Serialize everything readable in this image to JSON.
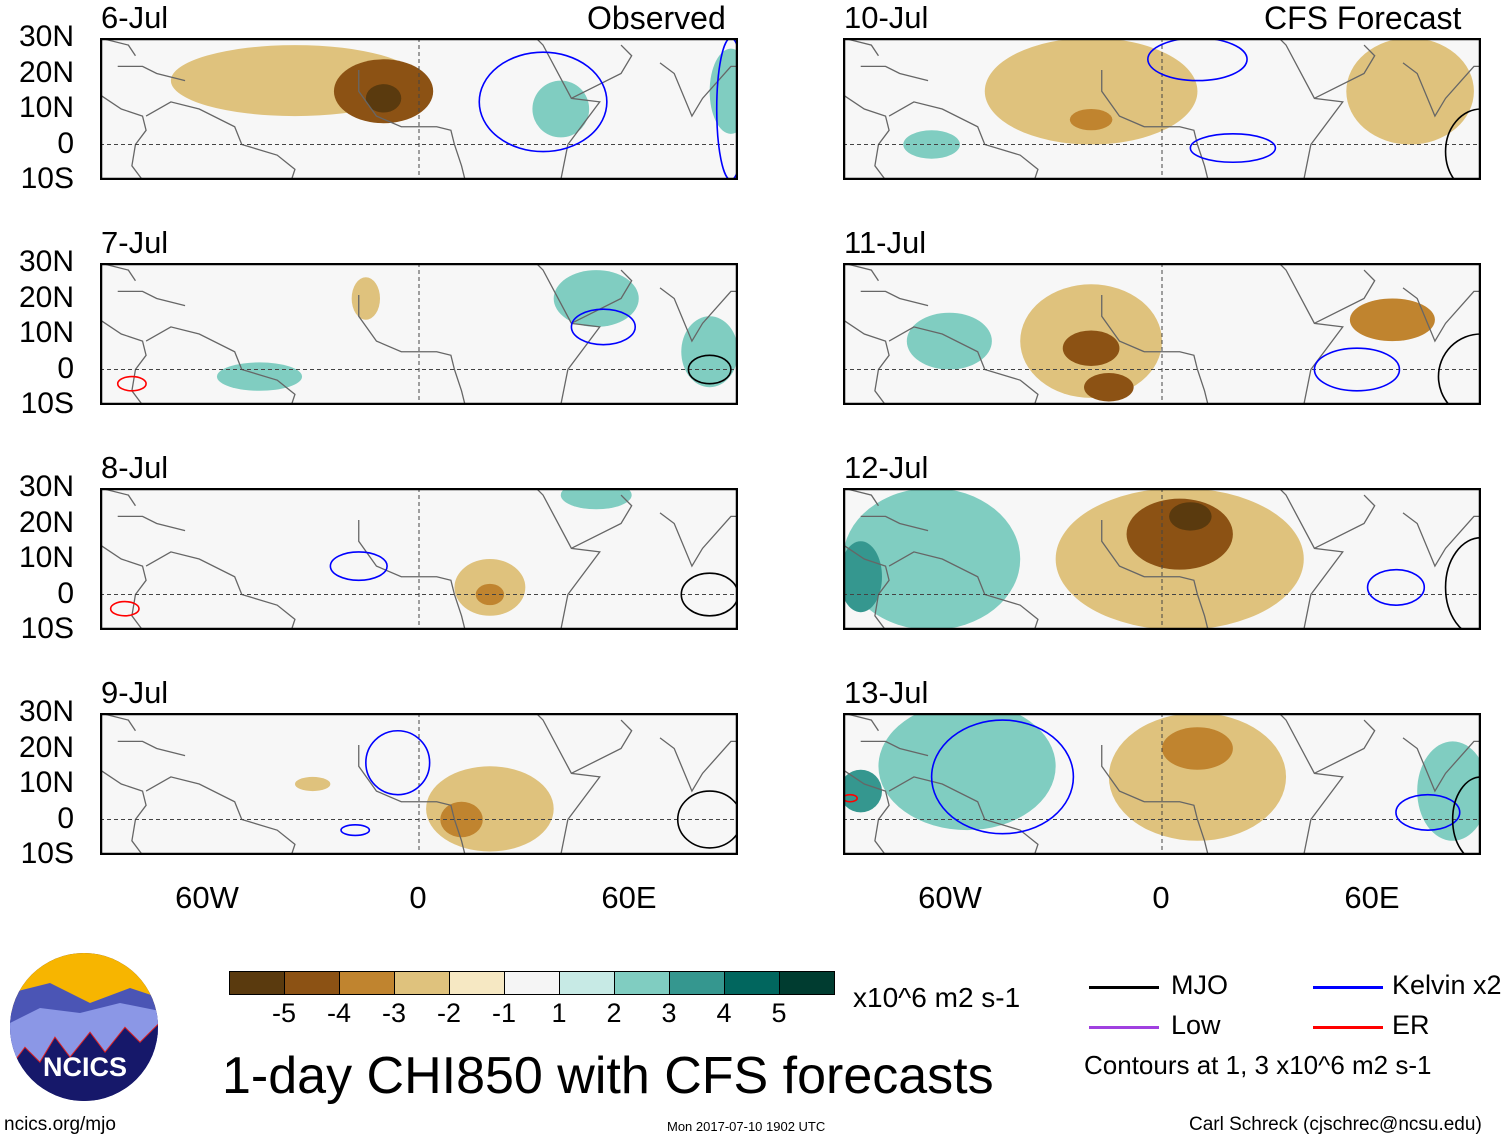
{
  "header": {
    "left_label": "Observed",
    "right_label": "CFS Forecast"
  },
  "lat_labels": [
    "30N",
    "20N",
    "10N",
    "0",
    "10S"
  ],
  "lon_labels": [
    "60W",
    "0",
    "60E"
  ],
  "title": "1-day CHI850 with CFS forecasts",
  "units": "x10^6 m2 s-1",
  "colorbar": {
    "colors": [
      "#5a3a0e",
      "#8c5214",
      "#c0842f",
      "#dfc27d",
      "#f6e8c3",
      "#f5f5f5",
      "#c7eae5",
      "#80cdc1",
      "#35978f",
      "#01665e",
      "#003c30"
    ],
    "labels": [
      "-5",
      "-4",
      "-3",
      "-2",
      "-1",
      "1",
      "2",
      "3",
      "4",
      "5"
    ]
  },
  "legend": {
    "items": [
      {
        "label": "MJO",
        "color": "#000000"
      },
      {
        "label": "Kelvin x2",
        "color": "#0000ff"
      },
      {
        "label": "Low",
        "color": "#a040e0"
      },
      {
        "label": "ER",
        "color": "#ff0000"
      }
    ],
    "note": "Contours at 1, 3 x10^6 m2 s-1"
  },
  "logo": {
    "text": "NCICS"
  },
  "footer": {
    "url": "ncics.org/mjo",
    "timestamp": "Mon 2017-07-10 1902 UTC",
    "author": "Carl Schreck (cjschrec@ncsu.edu)"
  },
  "chart_data": {
    "type": "heatmap",
    "lon_range": [
      -90,
      90
    ],
    "lat_range": [
      -10,
      30
    ],
    "panels": [
      {
        "date": "6-Jul",
        "anoms": [
          {
            "lon": -35,
            "lat": 18,
            "rl": 35,
            "rt": 10,
            "v": -1.5
          },
          {
            "lon": -10,
            "lat": 15,
            "rl": 14,
            "rt": 9,
            "v": -3
          },
          {
            "lon": -10,
            "lat": 13,
            "rl": 5,
            "rt": 4,
            "v": -4
          },
          {
            "lon": 40,
            "lat": 10,
            "rl": 8,
            "rt": 8,
            "v": 1.5
          },
          {
            "lon": 88,
            "lat": 15,
            "rl": 6,
            "rt": 12,
            "v": 1.5
          }
        ],
        "contours": [
          {
            "t": "Kelvin",
            "lon": 35,
            "lat": 12,
            "rl": 18,
            "rt": 14
          },
          {
            "t": "Kelvin",
            "lon": 88,
            "lat": 10,
            "rl": 4,
            "rt": 20
          }
        ]
      },
      {
        "date": "7-Jul",
        "anoms": [
          {
            "lon": -15,
            "lat": 20,
            "rl": 4,
            "rt": 6,
            "v": -1.5
          },
          {
            "lon": 50,
            "lat": 20,
            "rl": 12,
            "rt": 8,
            "v": 1.5
          },
          {
            "lon": -45,
            "lat": -2,
            "rl": 12,
            "rt": 4,
            "v": 1.5
          },
          {
            "lon": 82,
            "lat": 5,
            "rl": 8,
            "rt": 10,
            "v": 1.5
          }
        ],
        "contours": [
          {
            "t": "Kelvin",
            "lon": 52,
            "lat": 12,
            "rl": 9,
            "rt": 5
          },
          {
            "t": "MJO",
            "lon": 82,
            "lat": 0,
            "rl": 6,
            "rt": 4
          },
          {
            "t": "ER",
            "lon": -81,
            "lat": -4,
            "rl": 4,
            "rt": 2
          }
        ]
      },
      {
        "date": "8-Jul",
        "anoms": [
          {
            "lon": 50,
            "lat": 28,
            "rl": 10,
            "rt": 4,
            "v": 1.5
          },
          {
            "lon": 20,
            "lat": 2,
            "rl": 10,
            "rt": 8,
            "v": -1.5
          },
          {
            "lon": 20,
            "lat": 0,
            "rl": 4,
            "rt": 3,
            "v": -2.5
          }
        ],
        "contours": [
          {
            "t": "Kelvin",
            "lon": -17,
            "lat": 8,
            "rl": 8,
            "rt": 4
          },
          {
            "t": "MJO",
            "lon": 82,
            "lat": 0,
            "rl": 8,
            "rt": 6
          },
          {
            "t": "ER",
            "lon": -83,
            "lat": -4,
            "rl": 4,
            "rt": 2
          }
        ]
      },
      {
        "date": "9-Jul",
        "anoms": [
          {
            "lon": -30,
            "lat": 10,
            "rl": 5,
            "rt": 2,
            "v": -1.5
          },
          {
            "lon": 20,
            "lat": 3,
            "rl": 18,
            "rt": 12,
            "v": -1.5
          },
          {
            "lon": 12,
            "lat": 0,
            "rl": 6,
            "rt": 5,
            "v": -2.5
          }
        ],
        "contours": [
          {
            "t": "Kelvin",
            "lon": -6,
            "lat": 16,
            "rl": 9,
            "rt": 9
          },
          {
            "t": "Kelvin",
            "lon": -18,
            "lat": -3,
            "rl": 4,
            "rt": 1.5
          },
          {
            "t": "MJO",
            "lon": 82,
            "lat": 0,
            "rl": 9,
            "rt": 8
          }
        ]
      },
      {
        "date": "10-Jul",
        "anoms": [
          {
            "lon": -20,
            "lat": 15,
            "rl": 30,
            "rt": 15,
            "v": -1.5
          },
          {
            "lon": -20,
            "lat": 7,
            "rl": 6,
            "rt": 3,
            "v": -2.5
          },
          {
            "lon": 70,
            "lat": 15,
            "rl": 18,
            "rt": 15,
            "v": -1.5
          },
          {
            "lon": -65,
            "lat": 0,
            "rl": 8,
            "rt": 4,
            "v": 1.5
          }
        ],
        "contours": [
          {
            "t": "Kelvin",
            "lon": 10,
            "lat": 24,
            "rl": 14,
            "rt": 6
          },
          {
            "t": "Kelvin",
            "lon": 20,
            "lat": -1,
            "rl": 12,
            "rt": 4
          },
          {
            "t": "MJO",
            "lon": 90,
            "lat": -2,
            "rl": 10,
            "rt": 12
          }
        ]
      },
      {
        "date": "11-Jul",
        "anoms": [
          {
            "lon": -20,
            "lat": 8,
            "rl": 20,
            "rt": 16,
            "v": -1.5
          },
          {
            "lon": -20,
            "lat": 6,
            "rl": 8,
            "rt": 5,
            "v": -3
          },
          {
            "lon": -15,
            "lat": -5,
            "rl": 7,
            "rt": 4,
            "v": -3
          },
          {
            "lon": 65,
            "lat": 14,
            "rl": 12,
            "rt": 6,
            "v": -2
          },
          {
            "lon": -60,
            "lat": 8,
            "rl": 12,
            "rt": 8,
            "v": 1.5
          }
        ],
        "contours": [
          {
            "t": "Kelvin",
            "lon": 55,
            "lat": 0,
            "rl": 12,
            "rt": 6
          },
          {
            "t": "MJO",
            "lon": 90,
            "lat": -2,
            "rl": 12,
            "rt": 12
          }
        ]
      },
      {
        "date": "12-Jul",
        "anoms": [
          {
            "lon": 5,
            "lat": 10,
            "rl": 35,
            "rt": 20,
            "v": -1.5
          },
          {
            "lon": 5,
            "lat": 17,
            "rl": 15,
            "rt": 10,
            "v": -3
          },
          {
            "lon": 8,
            "lat": 22,
            "rl": 6,
            "rt": 4,
            "v": -4.5
          },
          {
            "lon": -65,
            "lat": 10,
            "rl": 25,
            "rt": 20,
            "v": 1.5
          },
          {
            "lon": -85,
            "lat": 5,
            "rl": 6,
            "rt": 10,
            "v": 2.5
          }
        ],
        "contours": [
          {
            "t": "Kelvin",
            "lon": 66,
            "lat": 2,
            "rl": 8,
            "rt": 5
          },
          {
            "t": "MJO",
            "lon": 90,
            "lat": 2,
            "rl": 10,
            "rt": 14
          }
        ]
      },
      {
        "date": "13-Jul",
        "anoms": [
          {
            "lon": -55,
            "lat": 15,
            "rl": 25,
            "rt": 18,
            "v": 1.5
          },
          {
            "lon": -85,
            "lat": 8,
            "rl": 6,
            "rt": 6,
            "v": 2.5
          },
          {
            "lon": 10,
            "lat": 12,
            "rl": 25,
            "rt": 18,
            "v": -1.5
          },
          {
            "lon": 10,
            "lat": 20,
            "rl": 10,
            "rt": 6,
            "v": -2.5
          },
          {
            "lon": 82,
            "lat": 8,
            "rl": 10,
            "rt": 14,
            "v": 1.5
          }
        ],
        "contours": [
          {
            "t": "Kelvin",
            "lon": -45,
            "lat": 12,
            "rl": 20,
            "rt": 16
          },
          {
            "t": "Kelvin",
            "lon": 75,
            "lat": 2,
            "rl": 9,
            "rt": 5
          },
          {
            "t": "MJO",
            "lon": 90,
            "lat": 0,
            "rl": 8,
            "rt": 12
          },
          {
            "t": "ER",
            "lon": -88,
            "lat": 6,
            "rl": 2,
            "rt": 1
          }
        ]
      }
    ]
  }
}
